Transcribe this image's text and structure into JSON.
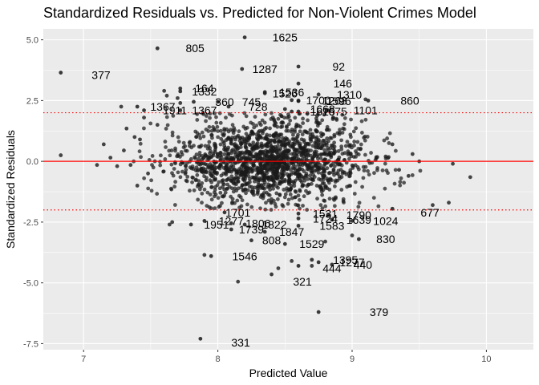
{
  "chart_data": {
    "type": "scatter",
    "title": "Standardized Residuals vs. Predicted for Non-Violent Crimes Model",
    "xlabel": "Predicted Value",
    "ylabel": "Standardized Residuals",
    "xlim": [
      6.7,
      10.35
    ],
    "ylim": [
      -7.75,
      5.45
    ],
    "x_ticks": [
      7,
      8,
      9,
      10
    ],
    "x_tick_labels": [
      "7",
      "8",
      "9",
      "10"
    ],
    "y_ticks": [
      -7.5,
      -5.0,
      -2.5,
      0.0,
      2.5,
      5.0
    ],
    "y_tick_labels": [
      "-7.5",
      "-5.0",
      "-2.5",
      "0.0",
      "2.5",
      "5.0"
    ],
    "reference_lines": [
      {
        "y": 0,
        "style": "solid",
        "color": "#ff0000"
      },
      {
        "y": 2,
        "style": "dotted",
        "color": "#ff0000"
      },
      {
        "y": -2,
        "style": "dotted",
        "color": "#ff0000"
      }
    ],
    "background_color": "#ebebeb",
    "grid_color": "#ffffff",
    "point_color": "#1a1a1a",
    "labeled_points": [
      {
        "label": "1625",
        "x": 8.2,
        "y": 5.1,
        "lx": 8.5,
        "ly": 5.1
      },
      {
        "label": "805",
        "x": 7.55,
        "y": 4.65,
        "lx": 7.83,
        "ly": 4.65
      },
      {
        "label": "377",
        "x": 6.83,
        "y": 3.65,
        "lx": 7.13,
        "ly": 3.55
      },
      {
        "label": "1287",
        "x": 8.18,
        "y": 3.8,
        "lx": 8.35,
        "ly": 3.8
      },
      {
        "label": "92",
        "x": 8.6,
        "y": 3.9,
        "lx": 8.9,
        "ly": 3.9
      },
      {
        "label": "146",
        "x": 8.6,
        "y": 3.2,
        "lx": 8.93,
        "ly": 3.2
      },
      {
        "label": "164",
        "x": 7.72,
        "y": 3.0,
        "lx": 7.9,
        "ly": 3.0
      },
      {
        "label": "1332",
        "x": 7.72,
        "y": 2.88,
        "lx": 7.9,
        "ly": 2.88
      },
      {
        "label": "1536",
        "x": 8.35,
        "y": 2.85,
        "lx": 8.55,
        "ly": 2.85
      },
      {
        "label": "1526",
        "x": 8.35,
        "y": 2.8,
        "lx": 8.5,
        "ly": 2.8
      },
      {
        "label": "1310",
        "x": 8.75,
        "y": 2.75,
        "lx": 8.98,
        "ly": 2.75
      },
      {
        "label": "1700",
        "x": 8.55,
        "y": 2.52,
        "lx": 8.75,
        "ly": 2.52
      },
      {
        "label": "1268",
        "x": 8.6,
        "y": 2.5,
        "lx": 8.87,
        "ly": 2.5
      },
      {
        "label": "1596",
        "x": 8.6,
        "y": 2.48,
        "lx": 8.9,
        "ly": 2.48
      },
      {
        "label": "860",
        "x": 9.12,
        "y": 2.5,
        "lx": 9.43,
        "ly": 2.5
      },
      {
        "label": "360",
        "x": 7.82,
        "y": 2.45,
        "lx": 8.05,
        "ly": 2.45
      },
      {
        "label": "745",
        "x": 8.0,
        "y": 2.45,
        "lx": 8.25,
        "ly": 2.45
      },
      {
        "label": "728",
        "x": 8.08,
        "y": 2.25,
        "lx": 8.3,
        "ly": 2.25
      },
      {
        "label": "1367",
        "x": 7.4,
        "y": 2.25,
        "lx": 7.59,
        "ly": 2.25
      },
      {
        "label": "1911",
        "x": 7.45,
        "y": 2.1,
        "lx": 7.68,
        "ly": 2.1
      },
      {
        "label": "1367",
        "x": 7.72,
        "y": 2.1,
        "lx": 7.9,
        "ly": 2.1
      },
      {
        "label": "1668",
        "x": 8.5,
        "y": 2.15,
        "lx": 8.78,
        "ly": 2.15
      },
      {
        "label": "1615",
        "x": 8.55,
        "y": 2.05,
        "lx": 8.78,
        "ly": 2.05
      },
      {
        "label": "1675",
        "x": 8.6,
        "y": 2.05,
        "lx": 8.87,
        "ly": 2.05
      },
      {
        "label": "1101",
        "x": 8.82,
        "y": 2.1,
        "lx": 9.1,
        "ly": 2.1
      },
      {
        "label": "1701",
        "x": 8.05,
        "y": -2.1,
        "lx": 8.15,
        "ly": -2.1
      },
      {
        "label": "1531",
        "x": 8.6,
        "y": -2.15,
        "lx": 8.8,
        "ly": -2.15
      },
      {
        "label": "1790",
        "x": 8.82,
        "y": -2.2,
        "lx": 9.05,
        "ly": -2.2
      },
      {
        "label": "677",
        "x": 9.3,
        "y": -1.95,
        "lx": 9.58,
        "ly": -2.1
      },
      {
        "label": "1724",
        "x": 8.6,
        "y": -2.35,
        "lx": 8.8,
        "ly": -2.35
      },
      {
        "label": "1639",
        "x": 8.85,
        "y": -2.4,
        "lx": 9.05,
        "ly": -2.4
      },
      {
        "label": "1024",
        "x": 9.0,
        "y": -2.45,
        "lx": 9.25,
        "ly": -2.45
      },
      {
        "label": "1277",
        "x": 7.9,
        "y": -2.45,
        "lx": 8.1,
        "ly": -2.45
      },
      {
        "label": "1951",
        "x": 7.8,
        "y": -2.6,
        "lx": 7.99,
        "ly": -2.6
      },
      {
        "label": "1806",
        "x": 8.1,
        "y": -2.55,
        "lx": 8.3,
        "ly": -2.55
      },
      {
        "label": "1822",
        "x": 8.2,
        "y": -2.6,
        "lx": 8.42,
        "ly": -2.6
      },
      {
        "label": "1583",
        "x": 8.6,
        "y": -2.65,
        "lx": 8.85,
        "ly": -2.65
      },
      {
        "label": "1739",
        "x": 8.1,
        "y": -2.8,
        "lx": 8.25,
        "ly": -2.8
      },
      {
        "label": "1847",
        "x": 8.35,
        "y": -2.9,
        "lx": 8.55,
        "ly": -2.9
      },
      {
        "label": "808",
        "x": 8.25,
        "y": -3.25,
        "lx": 8.4,
        "ly": -3.25
      },
      {
        "label": "830",
        "x": 9.05,
        "y": -3.2,
        "lx": 9.25,
        "ly": -3.2
      },
      {
        "label": "1529",
        "x": 8.5,
        "y": -3.4,
        "lx": 8.7,
        "ly": -3.4
      },
      {
        "label": "1546",
        "x": 7.95,
        "y": -3.9,
        "lx": 8.2,
        "ly": -3.9
      },
      {
        "label": "1395",
        "x": 8.7,
        "y": -4.05,
        "lx": 8.95,
        "ly": -4.05
      },
      {
        "label": "1277",
        "x": 8.75,
        "y": -4.15,
        "lx": 9.0,
        "ly": -4.15
      },
      {
        "label": "440",
        "x": 8.85,
        "y": -4.25,
        "lx": 9.08,
        "ly": -4.25
      },
      {
        "label": "444",
        "x": 8.6,
        "y": -4.3,
        "lx": 8.85,
        "ly": -4.4
      },
      {
        "label": "321",
        "x": 8.4,
        "y": -4.65,
        "lx": 8.63,
        "ly": -4.95
      },
      {
        "label": "379",
        "x": 8.75,
        "y": -6.2,
        "lx": 9.2,
        "ly": -6.2
      },
      {
        "label": "331",
        "x": 7.87,
        "y": -7.3,
        "lx": 8.17,
        "ly": -7.45
      }
    ],
    "cloud_points": [
      [
        6.83,
        0.25
      ],
      [
        7.1,
        -0.15
      ],
      [
        7.15,
        0.7
      ],
      [
        7.28,
        2.25
      ],
      [
        7.32,
        1.35
      ],
      [
        7.38,
        1.0
      ],
      [
        7.42,
        0.9
      ],
      [
        7.45,
        1.8
      ],
      [
        7.55,
        1.5
      ],
      [
        7.6,
        2.9
      ],
      [
        7.62,
        2.7
      ],
      [
        7.66,
        -2.5
      ],
      [
        7.64,
        -2.6
      ],
      [
        7.7,
        2.6
      ],
      [
        7.72,
        2.4
      ],
      [
        7.9,
        -3.85
      ],
      [
        8.15,
        -4.95
      ],
      [
        8.45,
        -4.4
      ],
      [
        8.55,
        -4.1
      ],
      [
        8.7,
        -4.3
      ],
      [
        8.8,
        -3.3
      ],
      [
        9.0,
        -3.05
      ],
      [
        9.1,
        2.55
      ],
      [
        9.6,
        -1.8
      ],
      [
        9.72,
        -1.7
      ],
      [
        9.75,
        -0.1
      ],
      [
        9.88,
        -0.65
      ],
      [
        9.35,
        -0.35
      ],
      [
        9.45,
        0.3
      ],
      [
        9.42,
        -0.6
      ],
      [
        9.5,
        0.0
      ],
      [
        9.3,
        0.7
      ],
      [
        9.25,
        0.2
      ],
      [
        7.2,
        0.15
      ],
      [
        7.25,
        -0.2
      ],
      [
        7.35,
        -0.15
      ],
      [
        7.4,
        -1.0
      ],
      [
        7.48,
        -0.5
      ],
      [
        7.3,
        0.45
      ]
    ]
  }
}
